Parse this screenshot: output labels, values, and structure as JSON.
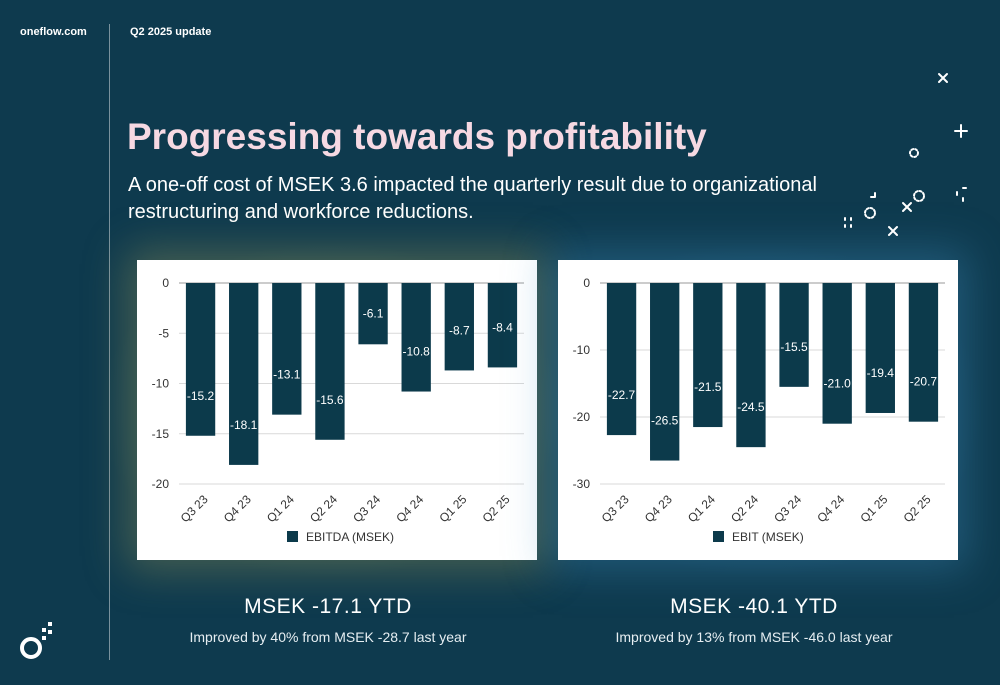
{
  "header": {
    "site": "oneflow.com",
    "update": "Q2 2025 update"
  },
  "title": "Progressing towards profitability",
  "subtitle": "A one-off cost of MSEK 3.6 impacted the quarterly result due to organizational restructuring and workforce reductions.",
  "colors": {
    "background": "#0e3a4e",
    "bar": "#0c3a4b",
    "title": "#f6d9e3"
  },
  "summaries": [
    {
      "headline": "MSEK -17.1 YTD",
      "detail": "Improved by 40% from MSEK -28.7 last year"
    },
    {
      "headline": "MSEK -40.1 YTD",
      "detail": "Improved by 13% from MSEK -46.0 last year"
    }
  ],
  "chart_data": [
    {
      "type": "bar",
      "categories": [
        "Q3 23",
        "Q4 23",
        "Q1 24",
        "Q2 24",
        "Q3 24",
        "Q4 24",
        "Q1 25",
        "Q2 25"
      ],
      "series": [
        {
          "name": "EBITDA (MSEK)",
          "values": [
            -15.2,
            -18.1,
            -13.1,
            -15.6,
            -6.1,
            -10.8,
            -8.7,
            -8.4
          ]
        }
      ],
      "data_labels": [
        "-15.2",
        "-18.1",
        "-13.1",
        "-15.6",
        "-6.1",
        "-10.8",
        "-8.7",
        "-8.4"
      ],
      "yticks": [
        0,
        -5,
        -10,
        -15,
        -20
      ],
      "ylim": [
        -20,
        0
      ],
      "grid": true,
      "legend": "bottom"
    },
    {
      "type": "bar",
      "categories": [
        "Q3 23",
        "Q4 23",
        "Q1 24",
        "Q2 24",
        "Q3 24",
        "Q4 24",
        "Q1 25",
        "Q2 25"
      ],
      "series": [
        {
          "name": "EBIT (MSEK)",
          "values": [
            -22.7,
            -26.5,
            -21.5,
            -24.5,
            -15.5,
            -21.0,
            -19.4,
            -20.7
          ]
        }
      ],
      "data_labels": [
        "-22.7",
        "-26.5",
        "-21.5",
        "-24.5",
        "-15.5",
        "-21.0",
        "-19.4",
        "-20.7"
      ],
      "yticks": [
        0,
        -10,
        -20,
        -30
      ],
      "ylim": [
        -30,
        0
      ],
      "grid": true,
      "legend": "bottom"
    }
  ]
}
